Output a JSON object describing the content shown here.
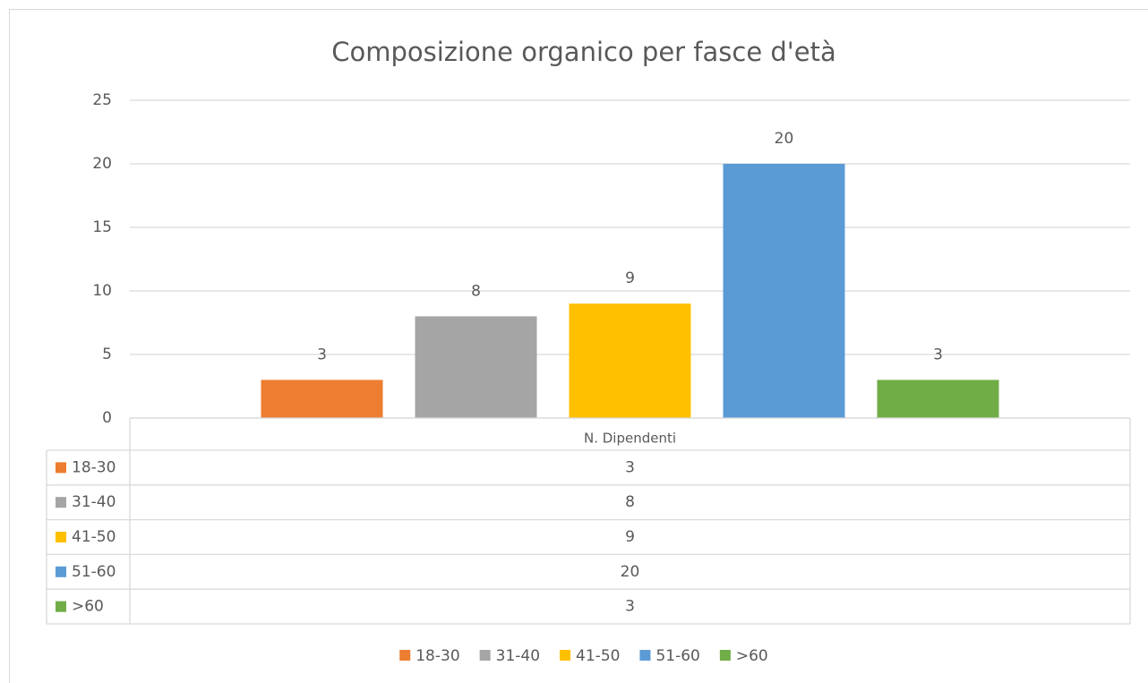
{
  "chart_data": {
    "type": "bar",
    "title": "Composizione organico per fasce d'età",
    "categories": [
      "N. Dipendenti"
    ],
    "series": [
      {
        "name": "18-30",
        "color": "#ed7d31",
        "values": [
          3
        ]
      },
      {
        "name": "31-40",
        "color": "#a5a5a5",
        "values": [
          8
        ]
      },
      {
        "name": "41-50",
        "color": "#ffc000",
        "values": [
          9
        ]
      },
      {
        "name": "51-60",
        "color": "#5b9bd5",
        "values": [
          20
        ]
      },
      {
        "name": ">60",
        "color": "#70ad47",
        "values": [
          3
        ]
      }
    ],
    "ylim": [
      0,
      25
    ],
    "yticks": [
      0,
      5,
      10,
      15,
      20,
      25
    ],
    "grid": true,
    "data_labels": true,
    "data_table": true,
    "legend": "bottom"
  }
}
